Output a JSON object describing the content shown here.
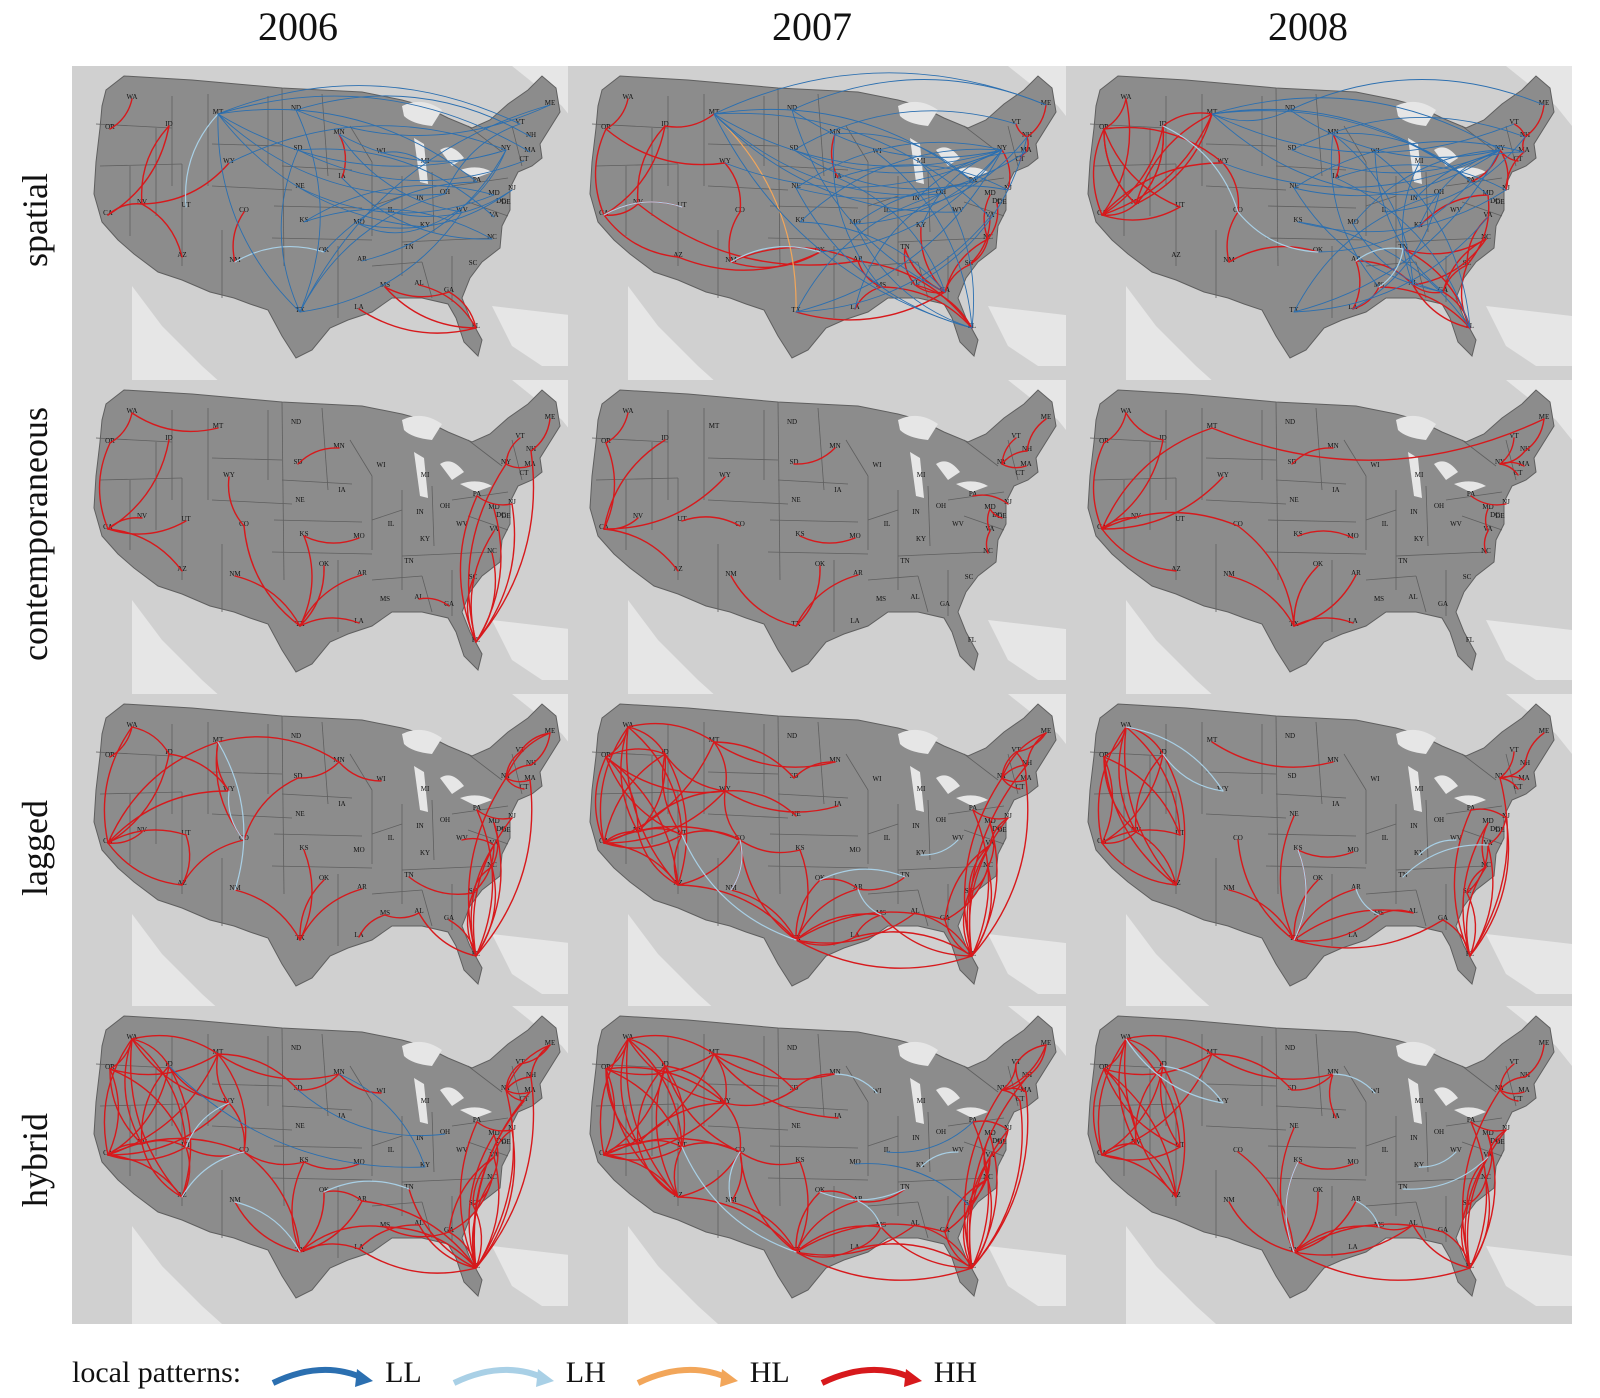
{
  "columns": [
    {
      "label": "2006"
    },
    {
      "label": "2007"
    },
    {
      "label": "2008"
    }
  ],
  "rows": [
    {
      "label": "spatial"
    },
    {
      "label": "contemporaneous"
    },
    {
      "label": "lagged"
    },
    {
      "label": "hybrid"
    }
  ],
  "legend": {
    "title": "local patterns:",
    "items": [
      {
        "label": "LL",
        "color": "#2b6fb0"
      },
      {
        "label": "LH",
        "color": "#a9d0e6"
      },
      {
        "label": "HL",
        "color": "#f2a65a"
      },
      {
        "label": "HH",
        "color": "#d7191c"
      }
    ]
  },
  "colors": {
    "land": "#8c8c8c",
    "state_border": "#5f5f5f",
    "background": "#d0d0d0",
    "water": "#e6e6e6"
  },
  "map_labels": {
    "states": [
      "WA",
      "OR",
      "ID",
      "MT",
      "ND",
      "MN",
      "SD",
      "WY",
      "WI",
      "MI",
      "IA",
      "NE",
      "CA",
      "NV",
      "UT",
      "CO",
      "KS",
      "MO",
      "IL",
      "IN",
      "OH",
      "PA",
      "NY",
      "VT",
      "NH",
      "ME",
      "MA",
      "CT",
      "NJ",
      "MD",
      "DE",
      "DC",
      "WV",
      "VA",
      "KY",
      "TN",
      "NC",
      "SC",
      "AZ",
      "NM",
      "OK",
      "AR",
      "TX",
      "LA",
      "MS",
      "AL",
      "GA",
      "FL"
    ]
  }
}
